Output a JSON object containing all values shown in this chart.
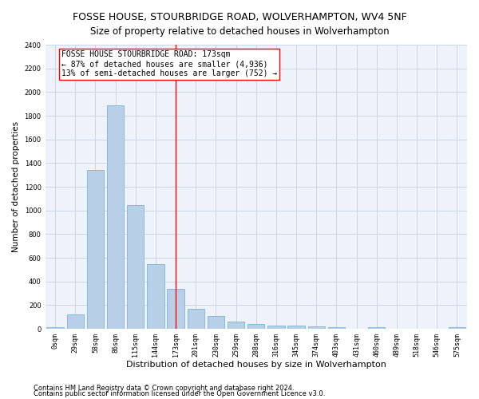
{
  "title": "FOSSE HOUSE, STOURBRIDGE ROAD, WOLVERHAMPTON, WV4 5NF",
  "subtitle": "Size of property relative to detached houses in Wolverhampton",
  "xlabel": "Distribution of detached houses by size in Wolverhampton",
  "ylabel": "Number of detached properties",
  "bin_labels": [
    "0sqm",
    "29sqm",
    "58sqm",
    "86sqm",
    "115sqm",
    "144sqm",
    "173sqm",
    "201sqm",
    "230sqm",
    "259sqm",
    "288sqm",
    "316sqm",
    "345sqm",
    "374sqm",
    "403sqm",
    "431sqm",
    "460sqm",
    "489sqm",
    "518sqm",
    "546sqm",
    "575sqm"
  ],
  "bar_heights": [
    15,
    125,
    1340,
    1890,
    1045,
    545,
    335,
    170,
    110,
    62,
    40,
    30,
    25,
    20,
    12,
    0,
    15,
    0,
    0,
    0,
    15
  ],
  "bar_color": "#b8cfe8",
  "bar_edge_color": "#6daad4",
  "vline_x_index": 6,
  "vline_color": "red",
  "annotation_text": "FOSSE HOUSE STOURBRIDGE ROAD: 173sqm\n← 87% of detached houses are smaller (4,936)\n13% of semi-detached houses are larger (752) →",
  "annotation_box_color": "white",
  "annotation_box_edge_color": "red",
  "ylim": [
    0,
    2400
  ],
  "yticks": [
    0,
    200,
    400,
    600,
    800,
    1000,
    1200,
    1400,
    1600,
    1800,
    2000,
    2200,
    2400
  ],
  "footer_line1": "Contains HM Land Registry data © Crown copyright and database right 2024.",
  "footer_line2": "Contains public sector information licensed under the Open Government Licence v3.0.",
  "bg_color": "#eef2fa",
  "grid_color": "#c8d0e0",
  "title_fontsize": 9,
  "subtitle_fontsize": 8.5,
  "xlabel_fontsize": 8,
  "ylabel_fontsize": 7.5,
  "tick_fontsize": 6,
  "annotation_fontsize": 7,
  "footer_fontsize": 6
}
